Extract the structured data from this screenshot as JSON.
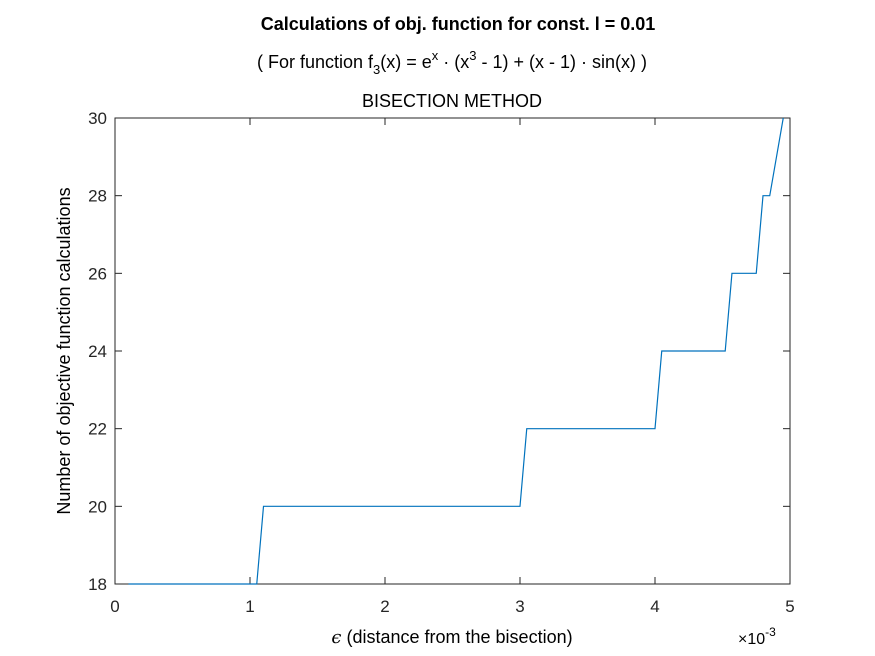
{
  "chart_data": {
    "type": "line",
    "title": "Calculations of obj. function for const. l = 0.01",
    "subtitle_parts": {
      "open": "( For function f",
      "sub": "3",
      "mid": "(x) = e",
      "sup1": "x",
      "mid2": " · (x",
      "sup2": "3",
      "tail": " - 1) + (x - 1) · sin(x) )"
    },
    "method_label": "BISECTION METHOD",
    "xlabel_symbol": "ϵ",
    "xlabel": " (distance from the bisection)",
    "ylabel": "Number of objective function calculations",
    "x_exponent": {
      "base": "×10",
      "power": "-3"
    },
    "xlim": [
      0,
      5
    ],
    "ylim": [
      18,
      30
    ],
    "xticks": [
      0,
      1,
      2,
      3,
      4,
      5
    ],
    "yticks": [
      18,
      20,
      22,
      24,
      26,
      28,
      30
    ],
    "grid": false,
    "line_color": "#0072BD",
    "series": [
      {
        "x": [
          0.1,
          1.05,
          1.1,
          3.0,
          3.05,
          4.0,
          4.05,
          4.52,
          4.57,
          4.75,
          4.8,
          4.85,
          4.95
        ],
        "y": [
          18,
          18,
          20,
          20,
          22,
          22,
          24,
          24,
          26,
          26,
          28,
          28,
          30
        ]
      }
    ]
  }
}
